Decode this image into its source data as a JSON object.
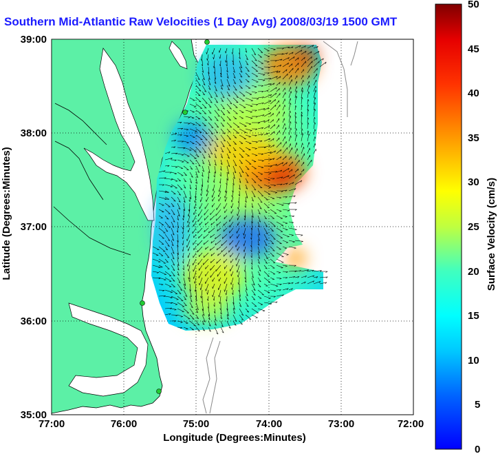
{
  "title": "Southern Mid-Atlantic Raw Velocities (1 Day Avg) 2008/03/19 1500 GMT",
  "x_axis": {
    "label": "Longitude (Degrees:Minutes)",
    "ticks": [
      "77:00",
      "76:00",
      "75:00",
      "74:00",
      "73:00",
      "72:00"
    ]
  },
  "y_axis": {
    "label": "Latitude (Degrees:Minutes)",
    "ticks": [
      "39:00",
      "38:00",
      "37:00",
      "36:00",
      "35:00"
    ]
  },
  "colorbar": {
    "label": "Surface Velocity (cm/s)",
    "ticks": [
      "50",
      "45",
      "40",
      "35",
      "30",
      "25",
      "20",
      "15",
      "10",
      "5",
      "0"
    ],
    "min": 0,
    "max": 50
  },
  "colors": {
    "land": "#5cf0a6",
    "water": "#ffffff",
    "title": "#1a1aff",
    "station": "#22cc33"
  }
}
